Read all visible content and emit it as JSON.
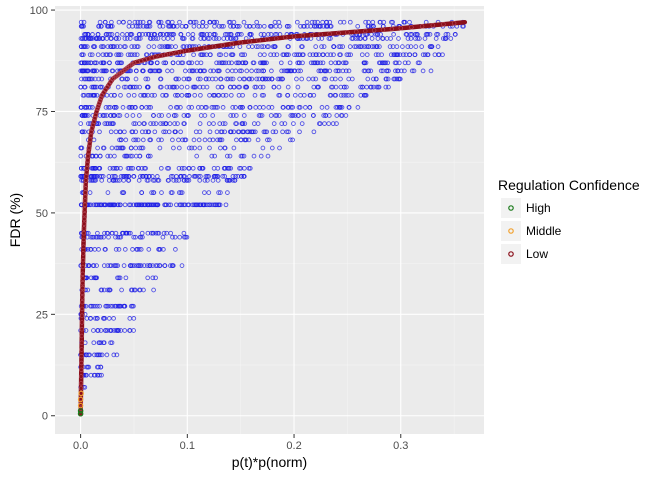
{
  "chart_data": {
    "type": "scatter",
    "xlabel": "p(t)*p(norm)",
    "ylabel": "FDR (%)",
    "xlim": [
      -0.024,
      0.378
    ],
    "ylim": [
      -4.5,
      101
    ],
    "x_ticks": [
      {
        "value": 0.0,
        "label": "0.0"
      },
      {
        "value": 0.1,
        "label": "0.1"
      },
      {
        "value": 0.2,
        "label": "0.2"
      },
      {
        "value": 0.3,
        "label": "0.3"
      }
    ],
    "y_ticks": [
      {
        "value": 0,
        "label": "0"
      },
      {
        "value": 25,
        "label": "25"
      },
      {
        "value": 50,
        "label": "50"
      },
      {
        "value": 75,
        "label": "75"
      },
      {
        "value": 100,
        "label": "100"
      }
    ],
    "grid": true,
    "legend": {
      "title": "Regulation Confidence",
      "placement": "right",
      "entries": [
        {
          "label": "High",
          "color": "#1a7a1a"
        },
        {
          "label": "Middle",
          "color": "#f2a12e"
        },
        {
          "label": "Low",
          "color": "#8b0f1a"
        }
      ]
    },
    "scatter_series": {
      "color": "#1f1fe6",
      "bands": [
        {
          "y": 97,
          "x": [
            0.0,
            0.36
          ],
          "n": 70
        },
        {
          "y": 96,
          "x": [
            0.0,
            0.36
          ],
          "n": 110
        },
        {
          "y": 94,
          "x": [
            0.0,
            0.355
          ],
          "n": 130
        },
        {
          "y": 93,
          "x": [
            0.0,
            0.35
          ],
          "n": 110
        },
        {
          "y": 91,
          "x": [
            0.0,
            0.345
          ],
          "n": 120
        },
        {
          "y": 89,
          "x": [
            0.0,
            0.34
          ],
          "n": 110
        },
        {
          "y": 87,
          "x": [
            0.0,
            0.33
          ],
          "n": 120
        },
        {
          "y": 85,
          "x": [
            0.0,
            0.33
          ],
          "n": 130
        },
        {
          "y": 83,
          "x": [
            0.0,
            0.31
          ],
          "n": 90
        },
        {
          "y": 81,
          "x": [
            0.0,
            0.3
          ],
          "n": 90
        },
        {
          "y": 79,
          "x": [
            0.0,
            0.28
          ],
          "n": 80
        },
        {
          "y": 76,
          "x": [
            0.0,
            0.27
          ],
          "n": 80
        },
        {
          "y": 74,
          "x": [
            0.0,
            0.25
          ],
          "n": 70
        },
        {
          "y": 72,
          "x": [
            0.0,
            0.24
          ],
          "n": 60
        },
        {
          "y": 70,
          "x": [
            0.0,
            0.22
          ],
          "n": 60
        },
        {
          "y": 68,
          "x": [
            0.0,
            0.2
          ],
          "n": 40
        },
        {
          "y": 66,
          "x": [
            0.0,
            0.19
          ],
          "n": 35
        },
        {
          "y": 64,
          "x": [
            0.0,
            0.18
          ],
          "n": 35
        },
        {
          "y": 61,
          "x": [
            0.0,
            0.16
          ],
          "n": 60
        },
        {
          "y": 59,
          "x": [
            0.0,
            0.16
          ],
          "n": 80
        },
        {
          "y": 58,
          "x": [
            0.0,
            0.15
          ],
          "n": 50
        },
        {
          "y": 55,
          "x": [
            0.0,
            0.14
          ],
          "n": 25
        },
        {
          "y": 52,
          "x": [
            0.0,
            0.14
          ],
          "n": 110
        },
        {
          "y": 45,
          "x": [
            0.0,
            0.1
          ],
          "n": 35
        },
        {
          "y": 44,
          "x": [
            0.0,
            0.1
          ],
          "n": 30
        },
        {
          "y": 41,
          "x": [
            0.0,
            0.09
          ],
          "n": 25
        },
        {
          "y": 37,
          "x": [
            0.0,
            0.1
          ],
          "n": 45
        },
        {
          "y": 34,
          "x": [
            0.0,
            0.08
          ],
          "n": 20
        },
        {
          "y": 31,
          "x": [
            0.0,
            0.07
          ],
          "n": 20
        },
        {
          "y": 27,
          "x": [
            0.0,
            0.05
          ],
          "n": 30
        },
        {
          "y": 25,
          "x": [
            0.0,
            0.006
          ],
          "n": 5
        },
        {
          "y": 24,
          "x": [
            0.0,
            0.05
          ],
          "n": 15
        },
        {
          "y": 21,
          "x": [
            0.0,
            0.05
          ],
          "n": 25
        },
        {
          "y": 18,
          "x": [
            0.0,
            0.03
          ],
          "n": 10
        },
        {
          "y": 15,
          "x": [
            0.0,
            0.035
          ],
          "n": 18
        },
        {
          "y": 12,
          "x": [
            0.0,
            0.02
          ],
          "n": 10
        },
        {
          "y": 10,
          "x": [
            0.0,
            0.02
          ],
          "n": 14
        },
        {
          "y": 7,
          "x": [
            0.0,
            0.005
          ],
          "n": 6
        }
      ]
    },
    "fit_curve": {
      "color": "#8b0f1a",
      "points": [
        [
          0.0,
          0.5
        ],
        [
          0.0005,
          8
        ],
        [
          0.001,
          18
        ],
        [
          0.0015,
          28
        ],
        [
          0.002,
          35
        ],
        [
          0.003,
          45
        ],
        [
          0.004,
          52
        ],
        [
          0.005,
          58
        ],
        [
          0.007,
          64
        ],
        [
          0.01,
          70
        ],
        [
          0.015,
          75
        ],
        [
          0.02,
          79
        ],
        [
          0.03,
          83
        ],
        [
          0.04,
          85
        ],
        [
          0.05,
          87
        ],
        [
          0.07,
          88.5
        ],
        [
          0.1,
          90
        ],
        [
          0.15,
          92
        ],
        [
          0.2,
          93.5
        ],
        [
          0.25,
          94.5
        ],
        [
          0.3,
          95.5
        ],
        [
          0.36,
          97
        ]
      ]
    },
    "high_points": [
      [
        0.0,
        0.5
      ],
      [
        0.0,
        1.2
      ]
    ],
    "middle_points": [
      [
        0.0,
        2.5
      ],
      [
        0.0,
        4.0
      ],
      [
        0.0005,
        5.5
      ]
    ]
  }
}
